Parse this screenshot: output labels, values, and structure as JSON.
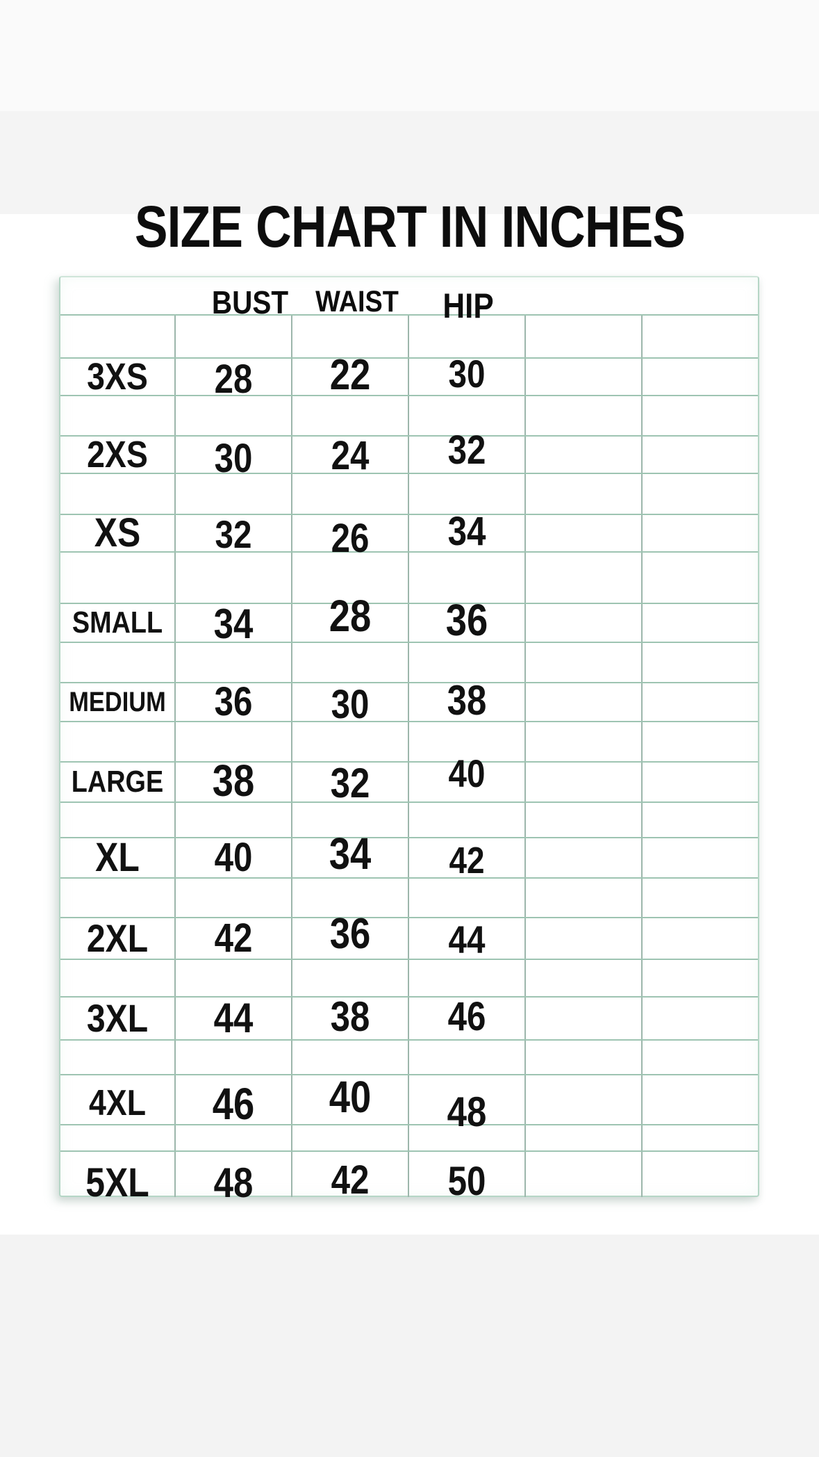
{
  "title": "SIZE CHART IN INCHES",
  "table": {
    "columns": [
      "BUST",
      "WAIST",
      "HIP"
    ],
    "rows": [
      {
        "size": "3XS",
        "bust": "28",
        "waist": "22",
        "hip": "30"
      },
      {
        "size": "2XS",
        "bust": "30",
        "waist": "24",
        "hip": "32"
      },
      {
        "size": "XS",
        "bust": "32",
        "waist": "26",
        "hip": "34"
      },
      {
        "size": "SMALL",
        "bust": "34",
        "waist": "28",
        "hip": "36"
      },
      {
        "size": "MEDIUM",
        "bust": "36",
        "waist": "30",
        "hip": "38"
      },
      {
        "size": "LARGE",
        "bust": "38",
        "waist": "32",
        "hip": "40"
      },
      {
        "size": "XL",
        "bust": "40",
        "waist": "34",
        "hip": "42"
      },
      {
        "size": "2XL",
        "bust": "42",
        "waist": "36",
        "hip": "44"
      },
      {
        "size": "3XL",
        "bust": "44",
        "waist": "38",
        "hip": "46"
      },
      {
        "size": "4XL",
        "bust": "46",
        "waist": "40",
        "hip": "48"
      },
      {
        "size": "5XL",
        "bust": "48",
        "waist": "42",
        "hip": "50"
      }
    ]
  },
  "colors": {
    "grid_horizontal": "#9ec4b2",
    "grid_vertical": "#9cb6ab",
    "table_border": "#b5d6c6",
    "text": "#111111",
    "gray_band": "#f3f4f4"
  }
}
